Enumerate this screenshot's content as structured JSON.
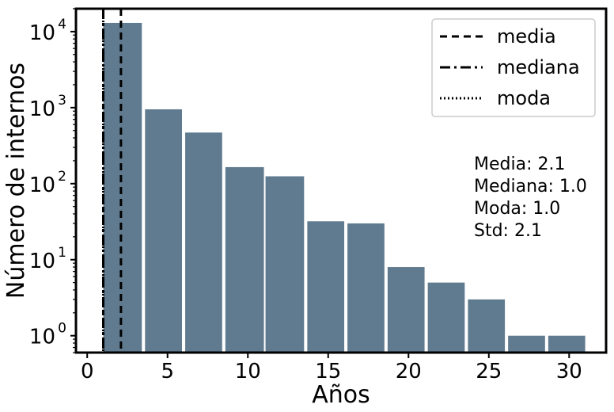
{
  "chart_data": {
    "type": "bar",
    "title": "",
    "xlabel": "Años",
    "ylabel": "Número de internos",
    "yscale": "log",
    "xlim": [
      -0.7,
      32.3
    ],
    "ylim": [
      0.6,
      20000
    ],
    "bar_color": "#607b8f",
    "bars": [
      {
        "x0": 1.0,
        "x1": 3.4,
        "value": 13000
      },
      {
        "x0": 3.6,
        "x1": 5.9,
        "value": 950
      },
      {
        "x0": 6.1,
        "x1": 8.4,
        "value": 470
      },
      {
        "x0": 8.6,
        "x1": 11.0,
        "value": 165
      },
      {
        "x0": 11.1,
        "x1": 13.5,
        "value": 125
      },
      {
        "x0": 13.7,
        "x1": 16.0,
        "value": 32
      },
      {
        "x0": 16.2,
        "x1": 18.5,
        "value": 30
      },
      {
        "x0": 18.7,
        "x1": 21.0,
        "value": 8
      },
      {
        "x0": 21.2,
        "x1": 23.5,
        "value": 5
      },
      {
        "x0": 23.7,
        "x1": 26.0,
        "value": 3
      },
      {
        "x0": 26.2,
        "x1": 28.5,
        "value": 1
      },
      {
        "x0": 28.7,
        "x1": 31.0,
        "value": 1
      }
    ],
    "x_ticks": [
      0,
      5,
      10,
      15,
      20,
      25,
      30
    ],
    "y_ticks": [
      {
        "value": 1,
        "base": "10",
        "exp": "0"
      },
      {
        "value": 10,
        "base": "10",
        "exp": "1"
      },
      {
        "value": 100,
        "base": "10",
        "exp": "2"
      },
      {
        "value": 1000,
        "base": "10",
        "exp": "3"
      },
      {
        "value": 10000,
        "base": "10",
        "exp": "4"
      }
    ],
    "reference_lines": [
      {
        "name": "media",
        "x": 2.1,
        "dash": "9,6"
      },
      {
        "name": "mediana",
        "x": 1.0,
        "dash": "13,5,3,5"
      },
      {
        "name": "moda",
        "x": 1.0,
        "dash": "2,3"
      }
    ],
    "legend": {
      "position": "top-right",
      "entries": [
        "media",
        "mediana",
        "moda"
      ]
    },
    "stats": [
      "Media: 2.1",
      "Mediana: 1.0",
      "Moda: 1.0",
      "Std: 2.1"
    ],
    "grid": false
  }
}
